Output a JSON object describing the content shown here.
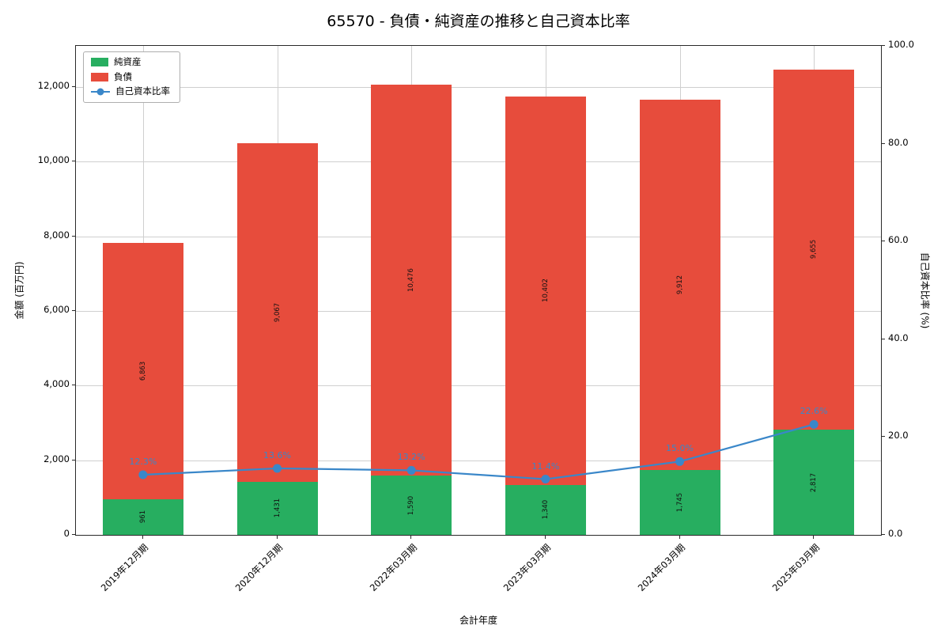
{
  "chart_data": {
    "type": "bar",
    "stacked": true,
    "title": "65570 - 負債・純資産の推移と自己資本比率",
    "xlabel": "会計年度",
    "ylabel_left": "金額 (百万円)",
    "ylabel_right": "自己資本比率 (%)",
    "grid": true,
    "grid_color": "#cfcfcf",
    "legend_position": "upper left",
    "categories": [
      "2019年12月期",
      "2020年12月期",
      "2022年03月期",
      "2023年03月期",
      "2024年03月期",
      "2025年03月期"
    ],
    "bar_series": [
      {
        "name": "純資産",
        "color": "#27ae60",
        "values": [
          961,
          1431,
          1590,
          1340,
          1745,
          2817
        ],
        "labels": [
          "961",
          "1,431",
          "1,590",
          "1,340",
          "1,745",
          "2,817"
        ]
      },
      {
        "name": "負債",
        "color": "#e74c3c",
        "values": [
          6863,
          9067,
          10476,
          10402,
          9912,
          9655
        ],
        "labels": [
          "6,863",
          "9,067",
          "10,476",
          "10,402",
          "9,912",
          "9,655"
        ]
      }
    ],
    "line_series": {
      "name": "自己資本比率",
      "color": "#3a87c9",
      "axis": "right",
      "values": [
        12.3,
        13.6,
        13.2,
        11.4,
        15.0,
        22.6
      ],
      "labels": [
        "12.3%",
        "13.6%",
        "13.2%",
        "11.4%",
        "15.0%",
        "22.6%"
      ]
    },
    "axes": {
      "left": {
        "min": 0,
        "max": 13100,
        "tick_values": [
          0,
          2000,
          4000,
          6000,
          8000,
          10000,
          12000
        ],
        "tick_labels": [
          "0",
          "2,000",
          "4,000",
          "6,000",
          "8,000",
          "10,000",
          "12,000"
        ]
      },
      "right": {
        "min": 0,
        "max": 100,
        "tick_values": [
          0,
          20,
          40,
          60,
          80,
          100
        ],
        "tick_labels": [
          "0.0",
          "20.0",
          "40.0",
          "60.0",
          "80.0",
          "100.0"
        ]
      }
    }
  }
}
